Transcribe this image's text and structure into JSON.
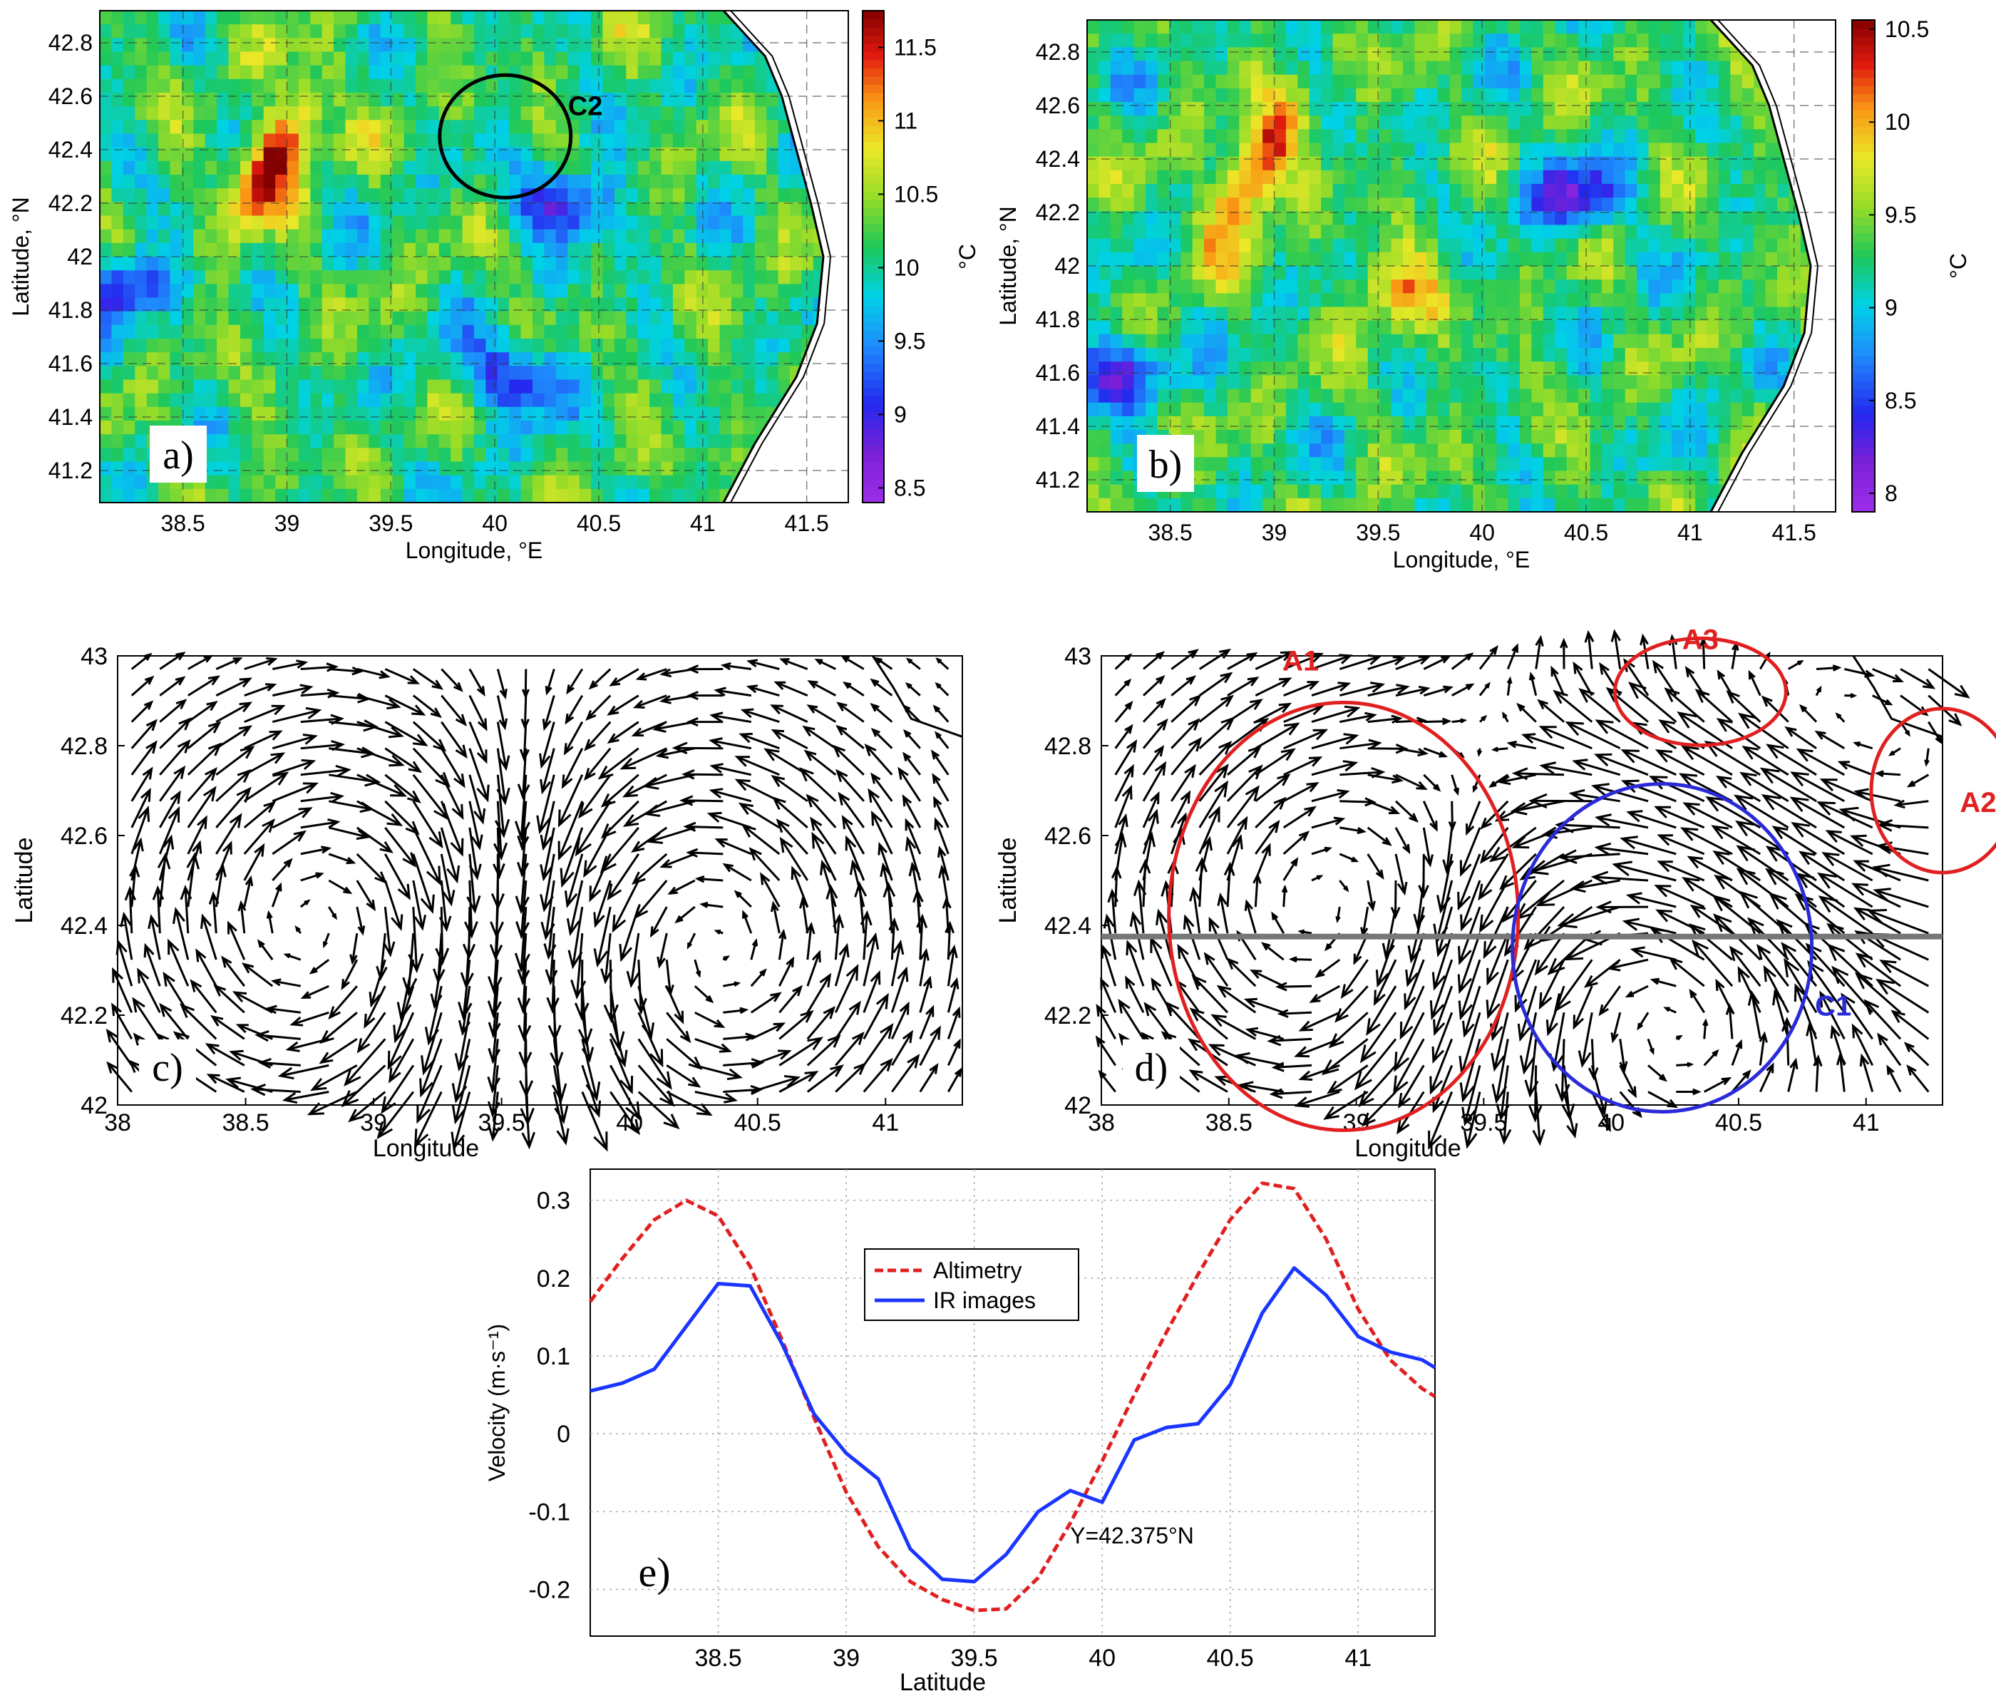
{
  "chart_data": [
    {
      "panel": "a",
      "type": "heatmap",
      "panel_label": "a)",
      "xlabel": "Longitude, °E",
      "ylabel": "Latitude, °N",
      "xlim": [
        38.1,
        41.7
      ],
      "ylim": [
        41.08,
        42.92
      ],
      "xticks": [
        "38.5",
        "39",
        "39.5",
        "40",
        "40.5",
        "41",
        "41.5"
      ],
      "yticks": [
        "41.2",
        "41.4",
        "41.6",
        "41.8",
        "42",
        "42.2",
        "42.4",
        "42.6",
        "42.8"
      ],
      "colorbar": {
        "range": [
          8.4,
          11.75
        ],
        "ticks": [
          "8.5",
          "9",
          "9.5",
          "10",
          "10.5",
          "11",
          "11.5"
        ],
        "unit": "°C"
      },
      "annotations": [
        {
          "text": "C2",
          "lon": 40.05,
          "lat": 42.45
        }
      ],
      "warm_core": {
        "lon": 38.95,
        "lat": 42.38
      },
      "cold_features": [
        {
          "lon": 40.35,
          "lat": 42.2
        },
        {
          "lon": 38.2,
          "lat": 41.9
        },
        {
          "lon": 40.1,
          "lat": 41.55
        }
      ]
    },
    {
      "panel": "b",
      "type": "heatmap",
      "panel_label": "b)",
      "xlabel": "Longitude, °E",
      "ylabel": "Latitude, °N",
      "xlim": [
        38.1,
        41.7
      ],
      "ylim": [
        41.08,
        42.92
      ],
      "xticks": [
        "38.5",
        "39",
        "39.5",
        "40",
        "40.5",
        "41",
        "41.5"
      ],
      "yticks": [
        "41.2",
        "41.4",
        "41.6",
        "41.8",
        "42",
        "42.2",
        "42.4",
        "42.6",
        "42.8"
      ],
      "colorbar": {
        "range": [
          7.9,
          10.55
        ],
        "ticks": [
          "8",
          "8.5",
          "9",
          "9.5",
          "10",
          "10.5"
        ],
        "unit": "°C"
      },
      "warm_core": {
        "lon": 38.9,
        "lat": 42.35
      },
      "cold_features": [
        {
          "lon": 40.45,
          "lat": 42.25
        },
        {
          "lon": 38.25,
          "lat": 41.6
        }
      ]
    },
    {
      "panel": "c",
      "type": "quiver",
      "panel_label": "c)",
      "xlabel": "Longitude",
      "ylabel": "Latitude",
      "xlim": [
        38,
        41.3
      ],
      "ylim": [
        42,
        43
      ],
      "xticks": [
        "38",
        "38.5",
        "39",
        "39.5",
        "40",
        "40.5",
        "41"
      ],
      "yticks": [
        "42",
        "42.2",
        "42.4",
        "42.6",
        "42.8",
        "43"
      ],
      "eddies": [
        {
          "lon": 38.85,
          "lat": 42.4,
          "sense": "anticyclonic"
        },
        {
          "lon": 40.25,
          "lat": 42.35,
          "sense": "cyclonic"
        }
      ]
    },
    {
      "panel": "d",
      "type": "quiver",
      "panel_label": "d)",
      "xlabel": "Longitude",
      "ylabel": "Latitude",
      "xlim": [
        38,
        41.3
      ],
      "ylim": [
        42,
        43
      ],
      "xticks": [
        "38",
        "38.5",
        "39",
        "39.5",
        "40",
        "40.5",
        "41"
      ],
      "yticks": [
        "42",
        "42.2",
        "42.4",
        "42.6",
        "42.8",
        "43"
      ],
      "section_lat": 42.375,
      "eddies": [
        {
          "label": "A1",
          "lon": 38.95,
          "lat": 42.42,
          "sense": "anticyclonic",
          "color": "#e02020"
        },
        {
          "label": "C1",
          "lon": 40.2,
          "lat": 42.35,
          "sense": "cyclonic",
          "color": "#2a2ad8"
        },
        {
          "label": "A2",
          "lon": 41.3,
          "lat": 42.7,
          "sense": "anticyclonic",
          "color": "#e02020"
        },
        {
          "label": "A3",
          "lon": 40.35,
          "lat": 42.92,
          "sense": "anticyclonic",
          "color": "#e02020"
        }
      ]
    },
    {
      "panel": "e",
      "type": "line",
      "panel_label": "e)",
      "xlabel": "Latitude",
      "ylabel": "Velocity  (m·s⁻¹)",
      "xlim": [
        38,
        41.3
      ],
      "ylim": [
        -0.26,
        0.34
      ],
      "xticks": [
        "38.5",
        "39",
        "39.5",
        "40",
        "40.5",
        "41"
      ],
      "yticks": [
        "-0.2",
        "-0.1",
        "0",
        "0.1",
        "0.2",
        "0.3"
      ],
      "annotation": "Y=42.375°N",
      "legend_position": "top-center",
      "series": [
        {
          "name": "Altimetry",
          "color": "#e02020",
          "style": "dashed",
          "x": [
            38.0,
            38.125,
            38.25,
            38.375,
            38.5,
            38.625,
            38.75,
            38.875,
            39.0,
            39.125,
            39.25,
            39.375,
            39.5,
            39.625,
            39.75,
            39.875,
            40.0,
            40.125,
            40.25,
            40.375,
            40.5,
            40.625,
            40.75,
            40.875,
            41.0,
            41.125,
            41.25,
            41.3
          ],
          "y": [
            0.17,
            0.225,
            0.275,
            0.3,
            0.28,
            0.215,
            0.12,
            0.02,
            -0.075,
            -0.145,
            -0.19,
            -0.213,
            -0.227,
            -0.225,
            -0.185,
            -0.115,
            -0.035,
            0.05,
            0.13,
            0.205,
            0.275,
            0.322,
            0.315,
            0.25,
            0.16,
            0.095,
            0.058,
            0.048
          ]
        },
        {
          "name": "IR images",
          "color": "#1a35ff",
          "style": "solid",
          "x": [
            38.0,
            38.125,
            38.25,
            38.375,
            38.5,
            38.625,
            38.75,
            38.875,
            39.0,
            39.125,
            39.25,
            39.375,
            39.5,
            39.625,
            39.75,
            39.875,
            40.0,
            40.125,
            40.25,
            40.375,
            40.5,
            40.625,
            40.75,
            40.875,
            41.0,
            41.125,
            41.25,
            41.3
          ],
          "y": [
            0.055,
            0.065,
            0.083,
            0.138,
            0.193,
            0.19,
            0.115,
            0.025,
            -0.025,
            -0.058,
            -0.148,
            -0.187,
            -0.19,
            -0.155,
            -0.1,
            -0.073,
            -0.088,
            -0.008,
            0.008,
            0.013,
            0.063,
            0.155,
            0.213,
            0.178,
            0.125,
            0.105,
            0.095,
            0.085
          ]
        }
      ]
    }
  ]
}
